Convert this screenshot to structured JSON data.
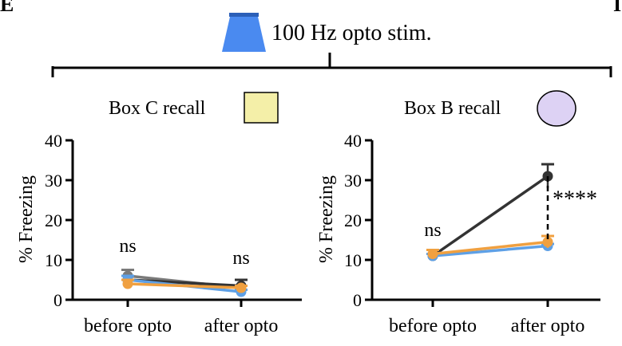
{
  "panel_letter": "E",
  "right_panel_letter_fragment": "I",
  "stim_label": "100 Hz opto stim.",
  "colors": {
    "stim_blue": "#4a8af0",
    "stim_blue_dark": "#2b5fb8",
    "axis": "#000000",
    "box_c_fill": "#f4efa8",
    "box_b_fill": "#ddd2f4",
    "series_dark": "#333333",
    "series_gray": "#7a7a7a",
    "series_blue": "#5ea0e6",
    "series_orange": "#f0a040"
  },
  "chart_data": [
    {
      "type": "line",
      "title": "Box C recall",
      "context_shape": "square",
      "ylabel": "% Freezing",
      "xlabel": "",
      "categories": [
        "before opto",
        "after opto"
      ],
      "ylim": [
        0,
        40
      ],
      "yticks": [
        0,
        10,
        20,
        30,
        40
      ],
      "series": [
        {
          "name": "series-gray",
          "color": "#7a7a7a",
          "values": [
            6,
            3
          ],
          "errors": [
            1.5,
            2
          ]
        },
        {
          "name": "series-dark",
          "color": "#333333",
          "values": [
            5,
            3.5
          ],
          "errors": [
            1,
            1.5
          ]
        },
        {
          "name": "series-blue",
          "color": "#5ea0e6",
          "values": [
            5,
            2
          ],
          "errors": [
            1,
            0.5
          ]
        },
        {
          "name": "series-orange",
          "color": "#f0a040",
          "values": [
            4,
            3
          ],
          "errors": [
            1,
            0.5
          ]
        }
      ],
      "annotations": [
        {
          "text": "ns",
          "category": 0,
          "y": 12
        },
        {
          "text": "ns",
          "category": 1,
          "y": 9
        }
      ]
    },
    {
      "type": "line",
      "title": "Box B recall",
      "context_shape": "ellipse",
      "ylabel": "% Freezing",
      "xlabel": "",
      "categories": [
        "before opto",
        "after opto"
      ],
      "ylim": [
        0,
        40
      ],
      "yticks": [
        0,
        10,
        20,
        30,
        40
      ],
      "series": [
        {
          "name": "series-dark",
          "color": "#333333",
          "values": [
            11,
            31
          ],
          "errors": [
            0.5,
            3
          ]
        },
        {
          "name": "series-blue",
          "color": "#5ea0e6",
          "values": [
            11,
            13.5
          ],
          "errors": [
            0.5,
            0.5
          ]
        },
        {
          "name": "series-orange",
          "color": "#f0a040",
          "values": [
            11.5,
            14.5
          ],
          "errors": [
            1,
            1.5
          ]
        }
      ],
      "annotations": [
        {
          "text": "ns",
          "category": 0,
          "y": 16
        },
        {
          "text": "****",
          "category": 1,
          "y": 23.5
        }
      ]
    }
  ]
}
